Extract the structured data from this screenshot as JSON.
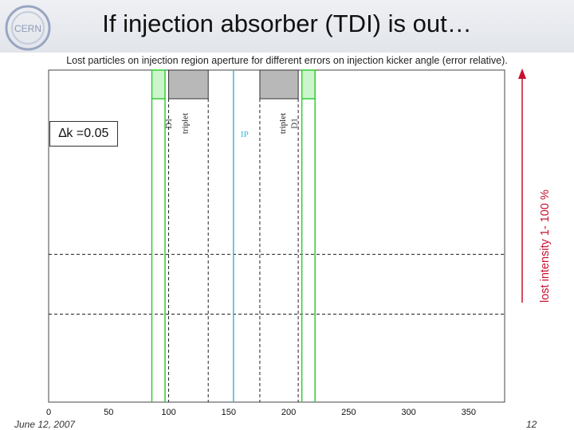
{
  "slide": {
    "title": "If injection absorber (TDI) is out…",
    "subtitle": "Lost particles on injection region aperture for different errors on injection kicker angle (error relative).",
    "error_label": "∆k =0.05",
    "intensity_label": "lost intensity 1- 100 %",
    "footer_date": "June 12, 2007",
    "page_number": "12",
    "logo_text": "CERN"
  },
  "colors": {
    "accent_red": "#c8102e",
    "element_green": "#33cc33",
    "ip_cyan": "#33bbdd",
    "triplet_gray": "#b8b8b8"
  },
  "chart_data": {
    "type": "scatter",
    "xlim": [
      0,
      380
    ],
    "x_ticks": [
      0,
      50,
      100,
      150,
      200,
      250,
      300,
      350
    ],
    "series": [],
    "elements": [
      {
        "label": "D1",
        "x_start": 86,
        "x_end": 97,
        "kind": "dipole"
      },
      {
        "label": "triplet",
        "x_start": 100,
        "x_end": 133,
        "kind": "quad"
      },
      {
        "label": "IP",
        "x_center": 154,
        "kind": "ip"
      },
      {
        "label": "triplet",
        "x_start": 176,
        "x_end": 208,
        "kind": "quad"
      },
      {
        "label": "D1",
        "x_start": 211,
        "x_end": 222,
        "kind": "dipole"
      }
    ],
    "vertical_dashed_lines_x": [
      100,
      133,
      176,
      208
    ],
    "horizontal_dashed_lines_fraction": [
      0.555,
      0.735
    ]
  }
}
